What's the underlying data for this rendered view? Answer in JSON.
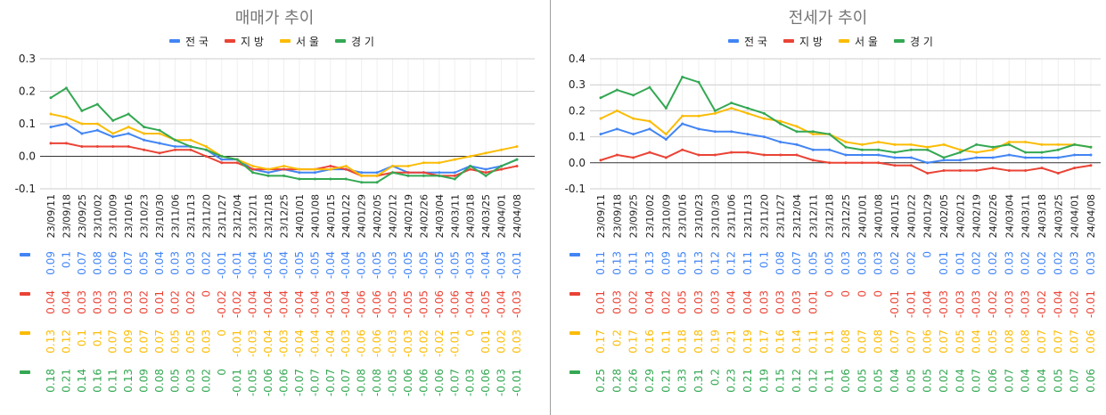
{
  "colors": {
    "전국": "#4285F4",
    "지방": "#EA4335",
    "서울": "#FBBC04",
    "경기": "#34A853"
  },
  "chart_data": [
    {
      "type": "line",
      "title": "매매가 추이",
      "legend_position": "top",
      "grid": true,
      "ylim": [
        -0.1,
        0.3
      ],
      "yticks": [
        "0.3",
        "0.2",
        "0.1",
        "0.0",
        "-0.1"
      ],
      "ytick_values": [
        0.3,
        0.2,
        0.1,
        0.0,
        -0.1
      ],
      "categories": [
        "23/09/11",
        "23/09/18",
        "23/09/25",
        "23/10/02",
        "23/10/09",
        "23/10/16",
        "23/10/23",
        "23/10/30",
        "23/11/06",
        "23/11/13",
        "23/11/20",
        "23/11/27",
        "23/12/04",
        "23/12/11",
        "23/12/18",
        "23/12/25",
        "24/01/01",
        "24/01/08",
        "24/01/15",
        "24/01/22",
        "24/01/29",
        "24/02/05",
        "24/02/12",
        "24/02/19",
        "24/02/26",
        "24/03/04",
        "24/03/11",
        "24/03/18",
        "24/03/25",
        "24/04/01",
        "24/04/08"
      ],
      "series": [
        {
          "name": "전국",
          "values": [
            0.09,
            0.1,
            0.07,
            0.08,
            0.06,
            0.07,
            0.05,
            0.04,
            0.03,
            0.03,
            0.02,
            -0.01,
            -0.01,
            -0.04,
            -0.05,
            -0.04,
            -0.05,
            -0.05,
            -0.04,
            -0.04,
            -0.05,
            -0.05,
            -0.03,
            -0.05,
            -0.05,
            -0.05,
            -0.05,
            -0.03,
            -0.04,
            -0.03,
            -0.01
          ]
        },
        {
          "name": "지방",
          "values": [
            0.04,
            0.04,
            0.03,
            0.03,
            0.03,
            0.03,
            0.02,
            0.01,
            0.02,
            0.02,
            0.0,
            -0.02,
            -0.02,
            -0.04,
            -0.04,
            -0.04,
            -0.04,
            -0.04,
            -0.03,
            -0.04,
            -0.06,
            -0.06,
            -0.05,
            -0.05,
            -0.05,
            -0.06,
            -0.06,
            -0.04,
            -0.05,
            -0.04,
            -0.03
          ]
        },
        {
          "name": "서울",
          "values": [
            0.13,
            0.12,
            0.1,
            0.1,
            0.07,
            0.09,
            0.07,
            0.07,
            0.05,
            0.05,
            0.03,
            0.0,
            -0.01,
            -0.03,
            -0.04,
            -0.03,
            -0.04,
            -0.04,
            -0.04,
            -0.03,
            -0.06,
            -0.06,
            -0.03,
            -0.03,
            -0.02,
            -0.02,
            -0.01,
            0.0,
            0.01,
            0.02,
            0.03
          ]
        },
        {
          "name": "경기",
          "values": [
            0.18,
            0.21,
            0.14,
            0.16,
            0.11,
            0.13,
            0.09,
            0.08,
            0.05,
            0.03,
            0.02,
            0.0,
            -0.01,
            -0.05,
            -0.06,
            -0.06,
            -0.07,
            -0.07,
            -0.07,
            -0.07,
            -0.08,
            -0.08,
            -0.05,
            -0.06,
            -0.06,
            -0.06,
            -0.07,
            -0.03,
            -0.06,
            -0.03,
            -0.01
          ]
        }
      ]
    },
    {
      "type": "line",
      "title": "전세가 추이",
      "legend_position": "top",
      "grid": true,
      "ylim": [
        -0.1,
        0.4
      ],
      "yticks": [
        "0.4",
        "0.3",
        "0.2",
        "0.1",
        "0.0",
        "-0.1"
      ],
      "ytick_values": [
        0.4,
        0.3,
        0.2,
        0.1,
        0.0,
        -0.1
      ],
      "categories": [
        "23/09/11",
        "23/09/18",
        "23/09/25",
        "23/10/02",
        "23/10/09",
        "23/10/16",
        "23/10/23",
        "23/10/30",
        "23/11/06",
        "23/11/13",
        "23/11/20",
        "23/11/27",
        "23/12/04",
        "23/12/11",
        "23/12/18",
        "23/12/25",
        "24/01/01",
        "24/01/08",
        "24/01/15",
        "24/01/22",
        "24/01/29",
        "24/02/05",
        "24/02/12",
        "24/02/19",
        "24/02/26",
        "24/03/04",
        "24/03/11",
        "24/03/18",
        "24/03/25",
        "24/04/01",
        "24/04/08"
      ],
      "series": [
        {
          "name": "전국",
          "values": [
            0.11,
            0.13,
            0.11,
            0.13,
            0.09,
            0.15,
            0.13,
            0.12,
            0.12,
            0.11,
            0.1,
            0.08,
            0.07,
            0.05,
            0.05,
            0.03,
            0.03,
            0.03,
            0.02,
            0.02,
            0.0,
            0.01,
            0.01,
            0.02,
            0.02,
            0.03,
            0.02,
            0.02,
            0.02,
            0.03,
            0.03
          ]
        },
        {
          "name": "지방",
          "values": [
            0.01,
            0.03,
            0.02,
            0.04,
            0.02,
            0.05,
            0.03,
            0.03,
            0.04,
            0.04,
            0.03,
            0.03,
            0.03,
            0.01,
            0,
            0,
            0,
            0,
            -0.01,
            -0.01,
            -0.04,
            -0.03,
            -0.03,
            -0.03,
            -0.02,
            -0.03,
            -0.03,
            -0.02,
            -0.04,
            -0.02,
            -0.01
          ]
        },
        {
          "name": "서울",
          "values": [
            0.17,
            0.2,
            0.17,
            0.16,
            0.11,
            0.18,
            0.18,
            0.19,
            0.21,
            0.19,
            0.17,
            0.16,
            0.14,
            0.11,
            0.11,
            0.08,
            0.07,
            0.08,
            0.07,
            0.07,
            0.06,
            0.07,
            0.05,
            0.04,
            0.05,
            0.08,
            0.08,
            0.07,
            0.07,
            0.07,
            0.06
          ]
        },
        {
          "name": "경기",
          "values": [
            0.25,
            0.28,
            0.26,
            0.29,
            0.21,
            0.33,
            0.31,
            0.2,
            0.23,
            0.21,
            0.19,
            0.15,
            0.12,
            0.12,
            0.11,
            0.06,
            0.05,
            0.05,
            0.04,
            0.05,
            0.05,
            0.02,
            0.04,
            0.07,
            0.06,
            0.07,
            0.04,
            0.04,
            0.05,
            0.07,
            0.06
          ]
        }
      ]
    }
  ]
}
